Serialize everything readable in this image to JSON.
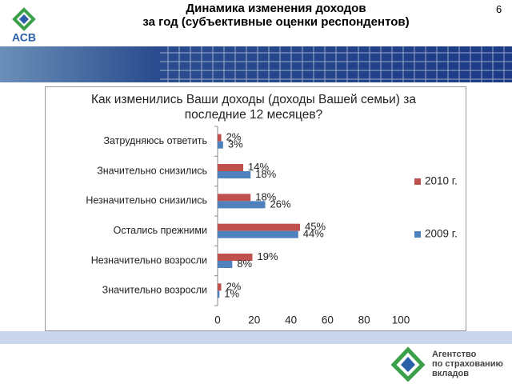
{
  "header": {
    "title": [
      "Динамика изменения доходов",
      "за год (субъективные оценки респондентов)"
    ],
    "page_number": "6",
    "logo": "АСВ"
  },
  "footer": {
    "lines": [
      "Агентство",
      "по страхованию",
      "вкладов"
    ]
  },
  "chart_data": {
    "type": "bar",
    "orientation": "horizontal",
    "title": "Как изменились Ваши доходы (доходы Вашей семьи) за последние 12 месяцев?",
    "categories": [
      "Затрудняюсь ответить",
      "Значительно снизились",
      "Незначительно снизились",
      "Остались прежними",
      "Незначительно возросли",
      "Значительно возросли"
    ],
    "series": [
      {
        "name": "2010 г.",
        "color": "#c0504d",
        "values": [
          2,
          14,
          18,
          45,
          19,
          2
        ],
        "value_labels": [
          "2%",
          "14%",
          "18%",
          "45%",
          "19%",
          "2%"
        ]
      },
      {
        "name": "2009 г.",
        "color": "#4f81bd",
        "values": [
          3,
          18,
          26,
          44,
          8,
          1
        ],
        "value_labels": [
          "3%",
          "18%",
          "26%",
          "44%",
          "8%",
          "1%"
        ]
      }
    ],
    "xlim": [
      0,
      100
    ],
    "xticks": [
      0,
      20,
      40,
      60,
      80,
      100
    ],
    "legend": "right"
  }
}
